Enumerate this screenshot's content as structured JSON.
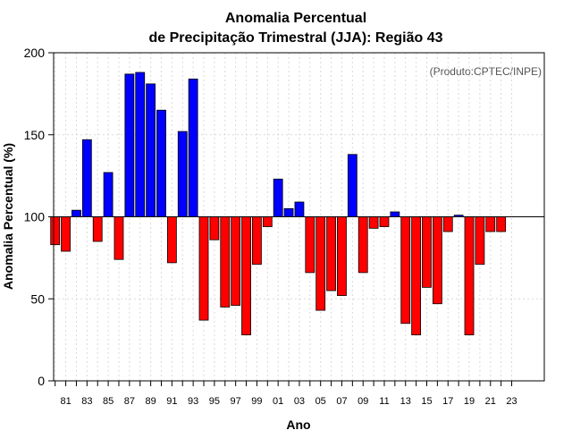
{
  "chart_data": {
    "type": "bar",
    "title": [
      "Anomalia Percentual",
      "de Precipitação Trimestral (JJA): Região 43"
    ],
    "xlabel": "Ano",
    "ylabel": "Anomalia Percentual (%)",
    "credit": "(Produto:CPTEC/INPE)",
    "baseline": 100,
    "ylim": [
      0,
      200
    ],
    "yticks": [
      0,
      50,
      100,
      150,
      200
    ],
    "grid": true,
    "colors": {
      "above": "#0000ff",
      "below": "#ff0000",
      "edge": "#000000",
      "grid": "#d9d9d9"
    },
    "categories": [
      "80",
      "81",
      "82",
      "83",
      "84",
      "85",
      "86",
      "87",
      "88",
      "89",
      "90",
      "91",
      "92",
      "93",
      "94",
      "95",
      "96",
      "97",
      "98",
      "99",
      "00",
      "01",
      "02",
      "03",
      "04",
      "05",
      "06",
      "07",
      "08",
      "09",
      "10",
      "11",
      "12",
      "13",
      "14",
      "15",
      "16",
      "17",
      "18",
      "19",
      "20",
      "21",
      "22",
      "23"
    ],
    "tick_labels": [
      "81",
      "83",
      "85",
      "87",
      "89",
      "91",
      "93",
      "95",
      "97",
      "99",
      "01",
      "03",
      "05",
      "07",
      "09",
      "11",
      "13",
      "15",
      "17",
      "19",
      "21",
      "23"
    ],
    "values": [
      83,
      79,
      104,
      147,
      85,
      127,
      74,
      187,
      188,
      181,
      165,
      72,
      152,
      184,
      37,
      86,
      45,
      46,
      28,
      71,
      94,
      123,
      105,
      109,
      66,
      43,
      55,
      52,
      138,
      66,
      93,
      94,
      103,
      35,
      28,
      57,
      47,
      91,
      101,
      28,
      71,
      91,
      91,
      100
    ]
  }
}
